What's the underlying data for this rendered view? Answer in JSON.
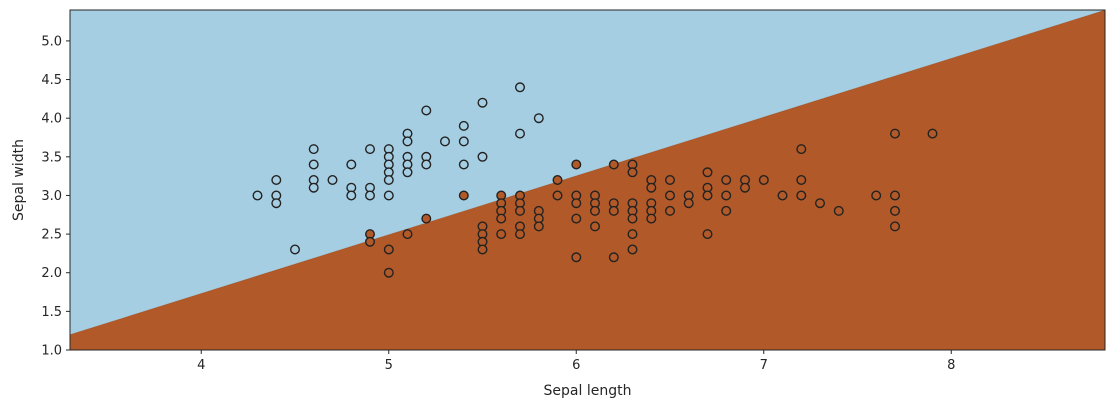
{
  "chart_data": {
    "type": "scatter",
    "title": "",
    "xlabel": "Sepal length",
    "ylabel": "Sepal width",
    "xlim": [
      3.3,
      8.82
    ],
    "ylim": [
      1.0,
      5.4
    ],
    "xticks": [
      4,
      5,
      6,
      7,
      8
    ],
    "yticks": [
      1.0,
      1.5,
      2.0,
      2.5,
      3.0,
      3.5,
      4.0,
      4.5,
      5.0
    ],
    "xtick_labels": [
      "4",
      "5",
      "6",
      "7",
      "8"
    ],
    "ytick_labels": [
      "1.0",
      "1.5",
      "2.0",
      "2.5",
      "3.0",
      "3.5",
      "4.0",
      "4.5",
      "5.0"
    ],
    "decision_boundary": {
      "description": "linear boundary between two regions",
      "points": [
        [
          3.3,
          1.2
        ],
        [
          8.82,
          5.4
        ]
      ]
    },
    "regions": [
      {
        "name": "upper-left region",
        "color": "#a6cee3"
      },
      {
        "name": "lower-right region",
        "color": "#b15928"
      }
    ],
    "marker_edge_color": "#222222",
    "series": [
      {
        "region": "upper-left region",
        "points": [
          [
            4.3,
            3.0
          ],
          [
            4.4,
            3.2
          ],
          [
            4.4,
            3.0
          ],
          [
            4.4,
            2.9
          ],
          [
            4.5,
            2.3
          ],
          [
            4.6,
            3.6
          ],
          [
            4.6,
            3.4
          ],
          [
            4.6,
            3.2
          ],
          [
            4.6,
            3.1
          ],
          [
            4.7,
            3.2
          ],
          [
            4.8,
            3.4
          ],
          [
            4.8,
            3.1
          ],
          [
            4.8,
            3.0
          ],
          [
            4.9,
            3.6
          ],
          [
            4.9,
            3.1
          ],
          [
            4.9,
            3.0
          ],
          [
            5.0,
            3.6
          ],
          [
            5.0,
            3.5
          ],
          [
            5.0,
            3.4
          ],
          [
            5.0,
            3.3
          ],
          [
            5.0,
            3.2
          ],
          [
            5.0,
            3.0
          ],
          [
            5.1,
            3.8
          ],
          [
            5.1,
            3.7
          ],
          [
            5.1,
            3.5
          ],
          [
            5.1,
            3.4
          ],
          [
            5.1,
            3.3
          ],
          [
            5.2,
            4.1
          ],
          [
            5.2,
            3.5
          ],
          [
            5.2,
            3.4
          ],
          [
            5.3,
            3.7
          ],
          [
            5.4,
            3.9
          ],
          [
            5.4,
            3.7
          ],
          [
            5.4,
            3.4
          ],
          [
            5.5,
            4.2
          ],
          [
            5.5,
            3.5
          ],
          [
            5.7,
            4.4
          ],
          [
            5.7,
            3.8
          ],
          [
            5.8,
            4.0
          ]
        ]
      },
      {
        "region": "lower-right region",
        "points": [
          [
            4.9,
            2.5
          ],
          [
            4.9,
            2.4
          ],
          [
            5.0,
            2.3
          ],
          [
            5.0,
            2.0
          ],
          [
            5.1,
            2.5
          ],
          [
            5.2,
            2.7
          ],
          [
            5.4,
            3.0
          ],
          [
            5.5,
            2.6
          ],
          [
            5.5,
            2.5
          ],
          [
            5.5,
            2.4
          ],
          [
            5.5,
            2.3
          ],
          [
            5.6,
            3.0
          ],
          [
            5.6,
            2.9
          ],
          [
            5.6,
            2.8
          ],
          [
            5.6,
            2.7
          ],
          [
            5.6,
            2.5
          ],
          [
            5.7,
            3.0
          ],
          [
            5.7,
            2.9
          ],
          [
            5.7,
            2.8
          ],
          [
            5.7,
            2.6
          ],
          [
            5.7,
            2.5
          ],
          [
            5.8,
            2.8
          ],
          [
            5.8,
            2.7
          ],
          [
            5.8,
            2.6
          ],
          [
            5.9,
            3.2
          ],
          [
            5.9,
            3.0
          ],
          [
            6.0,
            3.4
          ],
          [
            6.0,
            3.0
          ],
          [
            6.0,
            2.9
          ],
          [
            6.0,
            2.7
          ],
          [
            6.0,
            2.2
          ],
          [
            6.1,
            3.0
          ],
          [
            6.1,
            2.9
          ],
          [
            6.1,
            2.8
          ],
          [
            6.1,
            2.6
          ],
          [
            6.2,
            3.4
          ],
          [
            6.2,
            2.9
          ],
          [
            6.2,
            2.8
          ],
          [
            6.2,
            2.2
          ],
          [
            6.3,
            3.4
          ],
          [
            6.3,
            3.3
          ],
          [
            6.3,
            2.9
          ],
          [
            6.3,
            2.8
          ],
          [
            6.3,
            2.7
          ],
          [
            6.3,
            2.5
          ],
          [
            6.3,
            2.3
          ],
          [
            6.4,
            3.2
          ],
          [
            6.4,
            3.1
          ],
          [
            6.4,
            2.9
          ],
          [
            6.4,
            2.8
          ],
          [
            6.4,
            2.7
          ],
          [
            6.5,
            3.2
          ],
          [
            6.5,
            3.0
          ],
          [
            6.5,
            2.8
          ],
          [
            6.6,
            3.0
          ],
          [
            6.6,
            2.9
          ],
          [
            6.7,
            3.3
          ],
          [
            6.7,
            3.1
          ],
          [
            6.7,
            3.0
          ],
          [
            6.7,
            2.5
          ],
          [
            6.8,
            3.2
          ],
          [
            6.8,
            3.0
          ],
          [
            6.8,
            2.8
          ],
          [
            6.9,
            3.2
          ],
          [
            6.9,
            3.1
          ],
          [
            7.0,
            3.2
          ],
          [
            7.1,
            3.0
          ],
          [
            7.2,
            3.6
          ],
          [
            7.2,
            3.2
          ],
          [
            7.2,
            3.0
          ],
          [
            7.3,
            2.9
          ],
          [
            7.4,
            2.8
          ],
          [
            7.6,
            3.0
          ],
          [
            7.7,
            3.8
          ],
          [
            7.7,
            3.0
          ],
          [
            7.7,
            2.8
          ],
          [
            7.7,
            2.6
          ],
          [
            7.9,
            3.8
          ]
        ]
      }
    ]
  }
}
